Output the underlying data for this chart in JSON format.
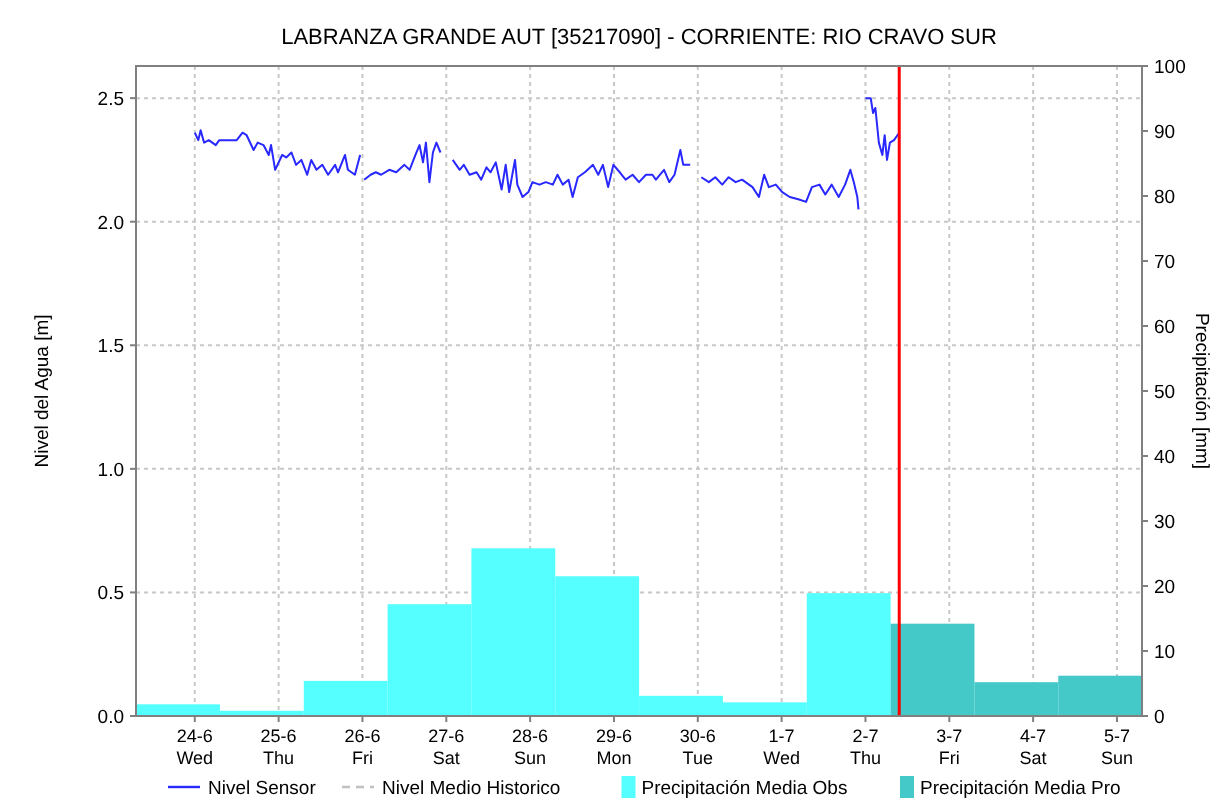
{
  "chart_data": {
    "type": "line",
    "title": "LABRANZA GRANDE AUT [35217090] - CORRIENTE: RIO CRAVO SUR",
    "ylabel": "Nivel del Agua [m]",
    "y2label": "Precipitación [mm]",
    "xlim": [
      "--06-23T07:10",
      "--07-05T07:10"
    ],
    "xticks": [
      {
        "value": "--06-24",
        "label": "24-6\nWed"
      },
      {
        "value": "--06-25",
        "label": "25-6\nThu"
      },
      {
        "value": "--06-26",
        "label": "26-6\nFri"
      },
      {
        "value": "--06-27",
        "label": "27-6\nSat"
      },
      {
        "value": "--06-28",
        "label": "28-6\nSun"
      },
      {
        "value": "--06-29",
        "label": "29-6\nMon"
      },
      {
        "value": "--06-30",
        "label": "30-6\nTue"
      },
      {
        "value": "--07-01",
        "label": "1-7\nWed"
      },
      {
        "value": "--07-02",
        "label": "2-7\nThu"
      },
      {
        "value": "--07-03",
        "label": "3-7\nFri"
      },
      {
        "value": "--07-04",
        "label": "4-7\nSat"
      },
      {
        "value": "--07-05",
        "label": "5-7\nSun"
      }
    ],
    "ylim": [
      0,
      2.63
    ],
    "yticks": [
      {
        "value": 0,
        "label": "0.0"
      },
      {
        "value": 0.5,
        "label": "0.5"
      },
      {
        "value": 1,
        "label": "1.0"
      },
      {
        "value": 1.5,
        "label": "1.5"
      },
      {
        "value": 2,
        "label": "2.0"
      },
      {
        "value": 2.5,
        "label": "2.5"
      }
    ],
    "y2lim": [
      0,
      100
    ],
    "y2ticks": [
      0,
      10,
      20,
      30,
      40,
      50,
      60,
      70,
      80,
      90,
      100
    ],
    "grid": true,
    "legend": "bottom",
    "ref_lines": [
      {
        "axis": "x",
        "value": "--07-02T09:40",
        "color": "#ff0000"
      }
    ],
    "series": [
      {
        "name": "Nivel Sensor",
        "color": "#2828ff",
        "line_style": "solid",
        "x": [
          "--06-24T00:00",
          "--06-24T01:00",
          "--06-24T01:40",
          "--06-24T02:40",
          "--06-24T04:00",
          "--06-24T06:00",
          "--06-24T07:00",
          "--06-24T12:00",
          "--06-24T13:40",
          "--06-24T14:50",
          "--06-24T16:50",
          "--06-24T18:00",
          "--06-24T19:40",
          "--06-24T21:10",
          "--06-24T21:50",
          "--06-24T23:00",
          "--06-25T01:00",
          "--06-25T02:10",
          "--06-25T03:40",
          "--06-25T05:00",
          "--06-25T06:30",
          "--06-25T08:10",
          "--06-25T09:20",
          "--06-25T10:50",
          "--06-25T12:30",
          "--06-25T14:10",
          "--06-25T16:10",
          "--06-25T17:00",
          "--06-25T19:00",
          "--06-25T19:50",
          "--06-25T21:50",
          "--06-25T23:20",
          "--06-26T00:00",
          "--06-26T00:30",
          "--06-26T02:20",
          "--06-26T03:50",
          "--06-26T05:20",
          "--06-26T07:40",
          "--06-26T09:40",
          "--06-26T12:00",
          "--06-26T13:30",
          "--06-26T15:10",
          "--06-26T16:20",
          "--06-26T17:20",
          "--06-26T18:10",
          "--06-26T19:10",
          "--06-26T20:10",
          "--06-26T21:10",
          "--06-26T22:20",
          "--06-27T00:00",
          "--06-27T01:50",
          "--06-27T03:50",
          "--06-27T05:00",
          "--06-27T06:40",
          "--06-27T08:40",
          "--06-27T10:00",
          "--06-27T11:30",
          "--06-27T12:40",
          "--06-27T14:10",
          "--06-27T15:50",
          "--06-27T17:00",
          "--06-27T18:00",
          "--06-27T19:40",
          "--06-27T20:20",
          "--06-27T21:50",
          "--06-27T23:30",
          "--06-28T00:40",
          "--06-28T02:40",
          "--06-28T04:30",
          "--06-28T06:30",
          "--06-28T07:50",
          "--06-28T09:20",
          "--06-28T11:00",
          "--06-28T12:10",
          "--06-28T13:40",
          "--06-28T15:40",
          "--06-28T18:00",
          "--06-28T19:30",
          "--06-28T20:50",
          "--06-28T22:20",
          "--06-28T23:50",
          "--06-29T01:40",
          "--06-29T03:20",
          "--06-29T05:20",
          "--06-29T07:10",
          "--06-29T09:10",
          "--06-29T11:00",
          "--06-29T12:00",
          "--06-29T14:20",
          "--06-29T15:50",
          "--06-29T17:20",
          "--06-29T19:00",
          "--06-29T19:50",
          "--06-29T21:50",
          "--06-29T23:30",
          "--06-30T01:00",
          "--06-30T03:10",
          "--06-30T05:00",
          "--06-30T07:00",
          "--06-30T08:50",
          "--06-30T10:50",
          "--06-30T12:40",
          "--06-30T15:40",
          "--06-30T17:30",
          "--06-30T19:00",
          "--06-30T20:20",
          "--06-30T22:20",
          "--07-01T00:10",
          "--07-01T02:20",
          "--07-01T05:00",
          "--07-01T07:00",
          "--07-01T08:40",
          "--07-01T10:50",
          "--07-01T12:30",
          "--07-01T14:20",
          "--07-01T16:20",
          "--07-01T18:10",
          "--07-01T19:40",
          "--07-01T20:40",
          "--07-01T21:40",
          "--07-01T22:00",
          "--07-01T23:00",
          "--07-02T00:00",
          "--07-02T01:30",
          "--07-02T02:10",
          "--07-02T02:50",
          "--07-02T03:50",
          "--07-02T04:50",
          "--07-02T05:30",
          "--07-02T06:10",
          "--07-02T07:00",
          "--07-02T08:10",
          "--07-02T09:40"
        ],
        "values": [
          2.36,
          2.33,
          2.37,
          2.32,
          2.33,
          2.31,
          2.33,
          2.33,
          2.36,
          2.35,
          2.29,
          2.32,
          2.31,
          2.27,
          2.31,
          2.21,
          2.27,
          2.26,
          2.28,
          2.23,
          2.25,
          2.19,
          2.25,
          2.21,
          2.23,
          2.19,
          2.23,
          2.2,
          2.27,
          2.21,
          2.19,
          2.27,
          null,
          2.17,
          2.19,
          2.2,
          2.19,
          2.21,
          2.2,
          2.23,
          2.21,
          2.27,
          2.31,
          2.24,
          2.32,
          2.16,
          2.28,
          2.32,
          2.28,
          null,
          2.25,
          2.21,
          2.23,
          2.19,
          2.2,
          2.17,
          2.22,
          2.2,
          2.24,
          2.13,
          2.23,
          2.12,
          2.25,
          2.15,
          2.1,
          2.12,
          2.16,
          2.15,
          2.16,
          2.15,
          2.19,
          2.15,
          2.17,
          2.1,
          2.18,
          2.2,
          2.23,
          2.19,
          2.23,
          2.14,
          2.23,
          2.2,
          2.17,
          2.19,
          2.16,
          2.19,
          2.19,
          2.17,
          2.21,
          2.16,
          2.19,
          2.29,
          2.23,
          2.23,
          null,
          2.18,
          2.16,
          2.18,
          2.15,
          2.18,
          2.16,
          2.17,
          2.14,
          2.1,
          2.19,
          2.14,
          2.15,
          2.12,
          2.1,
          2.09,
          2.08,
          2.14,
          2.15,
          2.11,
          2.15,
          2.1,
          2.15,
          2.21,
          2.16,
          2.1,
          2.05,
          null,
          2.5,
          2.5,
          2.44,
          2.46,
          2.32,
          2.27,
          2.35,
          2.25,
          2.32,
          2.33,
          2.36
        ]
      },
      {
        "name": "Nivel Medio Historico",
        "color": "#c0c0c0",
        "line_style": "dashed"
      },
      {
        "name": "Precipitación Media Obs",
        "type": "bar",
        "axis": "y2",
        "color": "#55ffff",
        "x": [
          "--06-23T19:12",
          "--06-24T19:12",
          "--06-25T19:12",
          "--06-26T19:12",
          "--06-27T19:12",
          "--06-28T19:12",
          "--06-29T19:12",
          "--06-30T19:12",
          "--07-01T19:12"
        ],
        "values": [
          1.8,
          0.8,
          5.4,
          17.2,
          25.8,
          21.5,
          3.1,
          2.1,
          18.9
        ]
      },
      {
        "name": "Precipitación Media Pro",
        "type": "bar",
        "axis": "y2",
        "color": "#45c8c8",
        "x": [
          "--07-02T19:12",
          "--07-03T19:12",
          "--07-04T19:12"
        ],
        "values": [
          14.2,
          5.2,
          6.2
        ]
      }
    ]
  }
}
